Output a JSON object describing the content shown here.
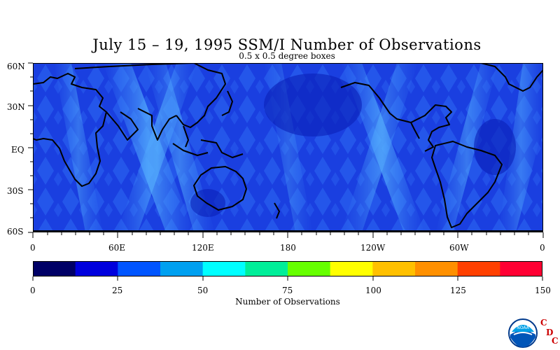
{
  "title": "July 15 – 19, 1995 SSM/I Number of Observations",
  "subtitle": "0.5 x 0.5 degree boxes",
  "map": {
    "lat_labels": [
      "60N",
      "30N",
      "EQ",
      "30S",
      "60S"
    ],
    "lon_labels": [
      "0",
      "60E",
      "120E",
      "180",
      "120W",
      "60W",
      "0"
    ],
    "ocean_base_color": "#1a3fe0",
    "land_color": "#0a2fd6",
    "track_color": "#4fa8ff",
    "coast_color": "#000000"
  },
  "colorbar": {
    "title": "Number of Observations",
    "tick_labels": [
      "0",
      "25",
      "50",
      "75",
      "100",
      "125",
      "150"
    ],
    "colors": [
      "#000066",
      "#0000dd",
      "#0055ff",
      "#00a0f0",
      "#00ffff",
      "#00ee99",
      "#66ff00",
      "#ffff00",
      "#ffc000",
      "#ff9000",
      "#ff4000",
      "#ff0033"
    ]
  },
  "logo": {
    "agency": "NOAA",
    "letters": [
      "C",
      "D",
      "C"
    ]
  }
}
